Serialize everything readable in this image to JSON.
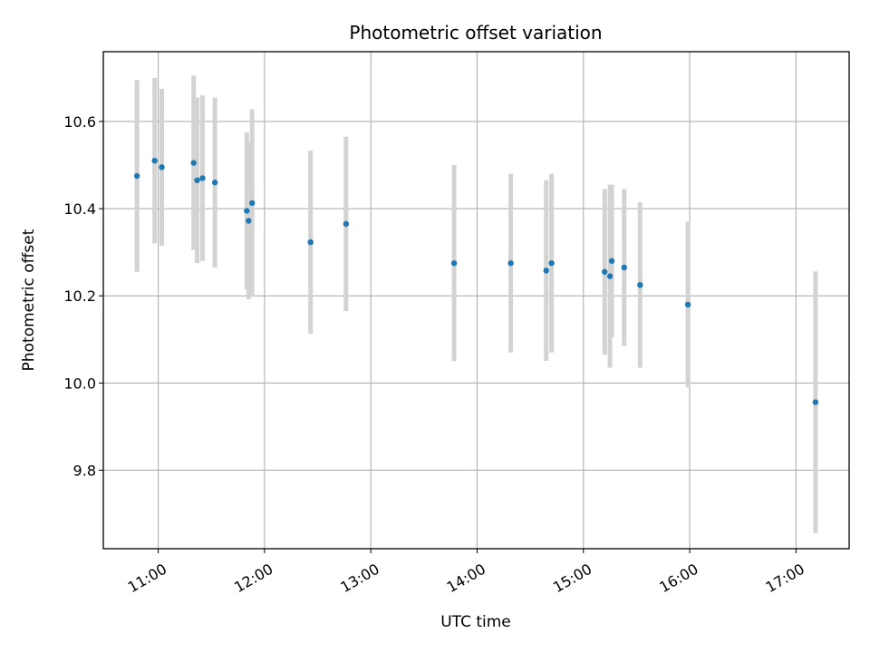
{
  "chart_data": {
    "type": "scatter",
    "title": "Photometric offset variation",
    "xlabel": "UTC time",
    "ylabel": "Photometric offset",
    "x_ticks": [
      "11:00",
      "12:00",
      "13:00",
      "14:00",
      "15:00",
      "16:00",
      "17:00"
    ],
    "y_ticks": [
      "9.8",
      "10.0",
      "10.2",
      "10.4",
      "10.6"
    ],
    "xlim": [
      "10:29",
      "17:30"
    ],
    "ylim": [
      9.62,
      10.76
    ],
    "grid": true,
    "marker_color": "#1f77b4",
    "errorbar_color": "#d3d3d3",
    "points": [
      {
        "time": "10:48",
        "y": 10.475,
        "err": 0.22
      },
      {
        "time": "10:58",
        "y": 10.51,
        "err": 0.19
      },
      {
        "time": "11:02",
        "y": 10.495,
        "err": 0.18
      },
      {
        "time": "11:20",
        "y": 10.505,
        "err": 0.2
      },
      {
        "time": "11:22",
        "y": 10.465,
        "err": 0.19
      },
      {
        "time": "11:25",
        "y": 10.47,
        "err": 0.19
      },
      {
        "time": "11:32",
        "y": 10.46,
        "err": 0.195
      },
      {
        "time": "11:50",
        "y": 10.395,
        "err": 0.18
      },
      {
        "time": "11:51",
        "y": 10.372,
        "err": 0.18
      },
      {
        "time": "11:53",
        "y": 10.413,
        "err": 0.215
      },
      {
        "time": "12:26",
        "y": 10.323,
        "err": 0.21
      },
      {
        "time": "12:46",
        "y": 10.365,
        "err": 0.2
      },
      {
        "time": "13:47",
        "y": 10.275,
        "err": 0.225
      },
      {
        "time": "14:19",
        "y": 10.275,
        "err": 0.205
      },
      {
        "time": "14:39",
        "y": 10.258,
        "err": 0.207
      },
      {
        "time": "14:42",
        "y": 10.275,
        "err": 0.205
      },
      {
        "time": "15:12",
        "y": 10.255,
        "err": 0.19
      },
      {
        "time": "15:15",
        "y": 10.245,
        "err": 0.21
      },
      {
        "time": "15:16",
        "y": 10.28,
        "err": 0.175
      },
      {
        "time": "15:23",
        "y": 10.265,
        "err": 0.18
      },
      {
        "time": "15:32",
        "y": 10.225,
        "err": 0.19
      },
      {
        "time": "15:59",
        "y": 10.18,
        "err": 0.19
      },
      {
        "time": "17:11",
        "y": 9.956,
        "err": 0.3
      }
    ]
  }
}
